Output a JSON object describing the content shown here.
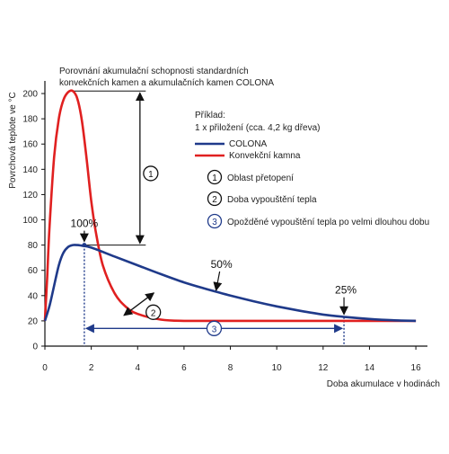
{
  "chart_data": {
    "type": "line",
    "title": "Porovnání akumulační schopnosti standardních konvekčních kamen a akumulačních kamen COLONA",
    "title_lines": [
      "Porovnání akumulační schopnosti standardních",
      "konvekčních kamen a akumulačních kamen COLONA"
    ],
    "xlabel": "Doba akumulace v hodinách",
    "ylabel": "Povrchová teplote ve °C",
    "xlim": [
      0,
      16.5
    ],
    "ylim": [
      0,
      210
    ],
    "xticks": [
      0,
      2,
      4,
      6,
      8,
      10,
      12,
      14,
      16
    ],
    "yticks": [
      0,
      20,
      40,
      60,
      80,
      100,
      120,
      140,
      160,
      180,
      200
    ],
    "grid": false,
    "legend_position": "top-right",
    "legend_title_lines": [
      "Příklad:",
      "1 x přiložení (cca. 4,2 kg dřeva)"
    ],
    "series": [
      {
        "name": "COLONA",
        "color": "#1f3a8a",
        "x": [
          0,
          0.2,
          0.4,
          0.6,
          0.8,
          1.0,
          1.2,
          1.4,
          1.6,
          2,
          3,
          4,
          5,
          6,
          7,
          8,
          9,
          10,
          11,
          12,
          13,
          14,
          15,
          16
        ],
        "y": [
          20,
          32,
          48,
          64,
          74,
          78.5,
          80,
          80,
          79.5,
          78,
          71,
          64,
          57,
          50.5,
          45,
          40,
          35.5,
          31.5,
          28,
          25,
          23,
          21.5,
          20.5,
          20
        ]
      },
      {
        "name": "Konvekční kamna",
        "color": "#e02020",
        "x": [
          0,
          0.1,
          0.2,
          0.4,
          0.6,
          0.8,
          1.0,
          1.2,
          1.4,
          1.6,
          1.8,
          2.0,
          2.2,
          2.5,
          3.0,
          3.5,
          4.0,
          5.0,
          6.0,
          8,
          10,
          12,
          14,
          16
        ],
        "y": [
          20,
          55,
          95,
          150,
          180,
          195,
          201,
          202,
          196,
          178,
          148,
          115,
          90,
          64,
          42,
          31,
          25.5,
          21,
          20,
          20,
          20,
          20,
          20,
          20
        ]
      }
    ],
    "annotations": {
      "pct_100": {
        "label": "100%",
        "x": 1.7,
        "y": 80
      },
      "pct_50": {
        "label": "50%",
        "x": 7.5,
        "y": 42
      },
      "pct_25": {
        "label": "25%",
        "x": 12.9,
        "y": 23
      },
      "range_1": {
        "number": "1",
        "from_y": 80,
        "to_y": 202,
        "x": 4.1
      },
      "range_2": {
        "number": "2",
        "from": [
          4.7,
          33.6
        ],
        "to": [
          3.1,
          40
        ]
      },
      "range_3": {
        "number": "3",
        "from_x": 1.7,
        "to_x": 12.9,
        "y": 14
      }
    },
    "notes": [
      {
        "number": "1",
        "text": "Oblast přetopení"
      },
      {
        "number": "2",
        "text": "Doba vypouštění tepla"
      },
      {
        "number": "3",
        "text": "Opožděné vypouštění tepla po velmi dlouhou dobu"
      }
    ]
  }
}
